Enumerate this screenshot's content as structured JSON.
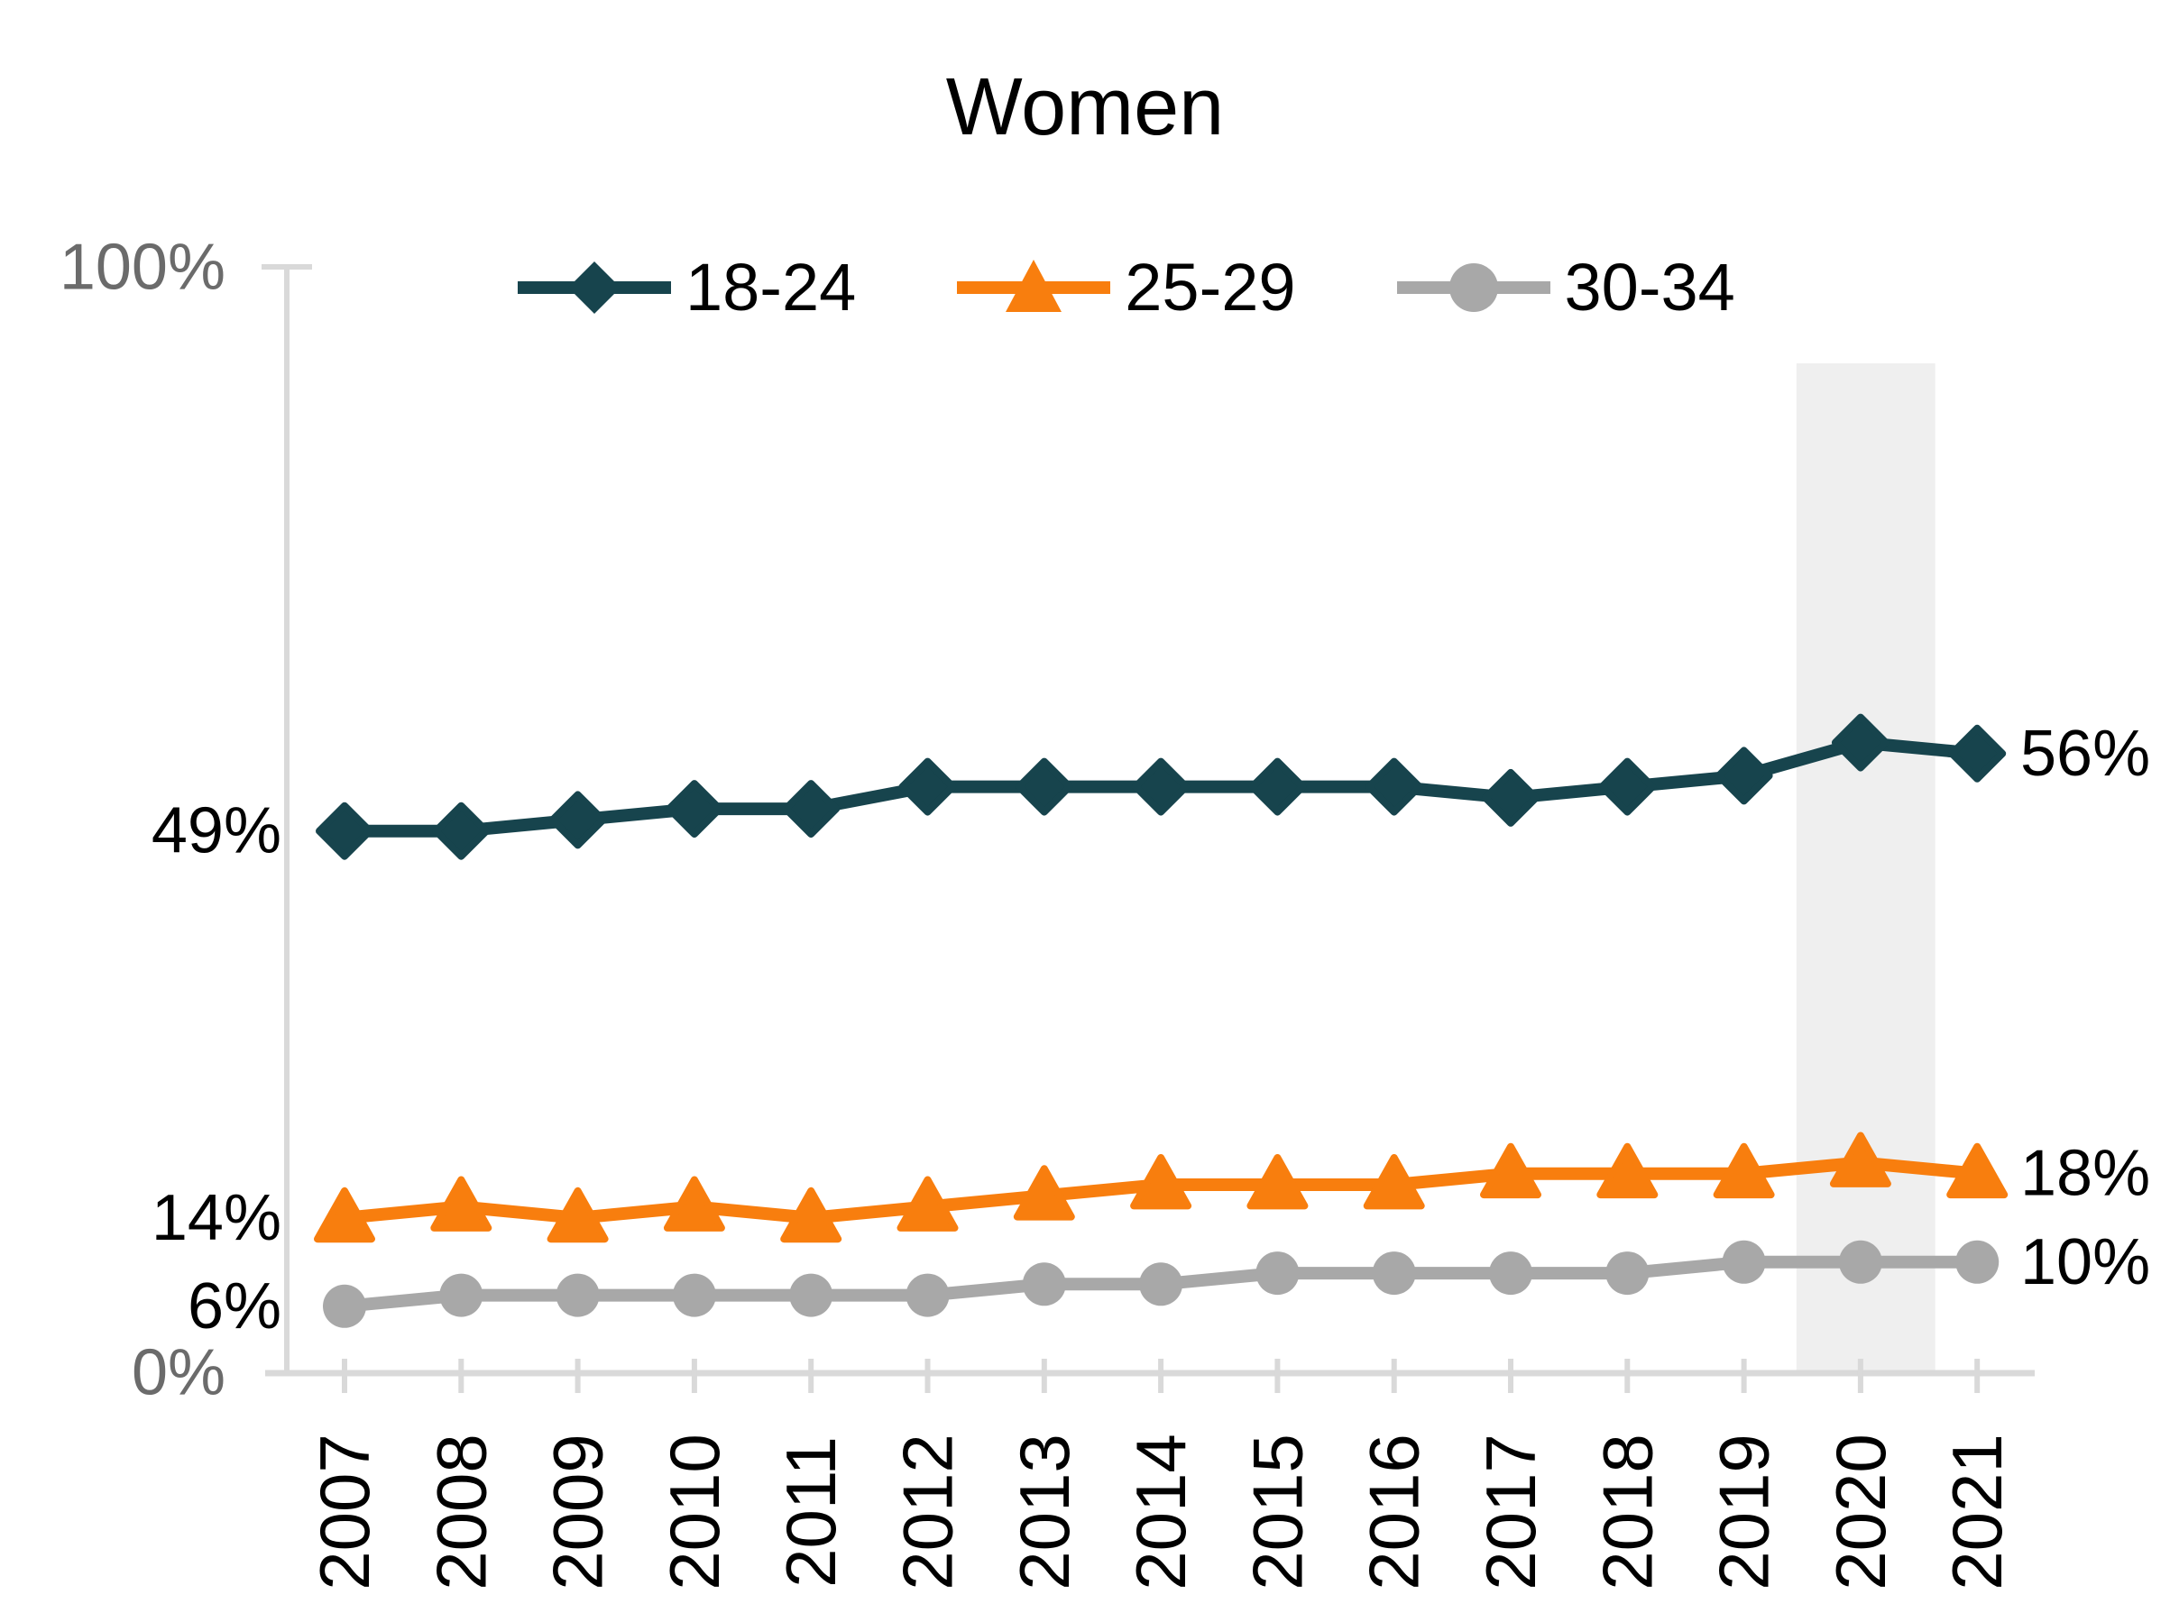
{
  "page": {
    "background": "#ffffff"
  },
  "chart_data": {
    "type": "line",
    "title": "Women",
    "categories": [
      "2007",
      "2008",
      "2009",
      "2010",
      "2011",
      "2012",
      "2013",
      "2014",
      "2015",
      "2016",
      "2017",
      "2018",
      "2019",
      "2020",
      "2021"
    ],
    "series": [
      {
        "name": "18-24",
        "color": "#17444d",
        "marker": "diamond",
        "values": [
          49,
          49,
          50,
          51,
          51,
          53,
          53,
          53,
          53,
          53,
          52,
          53,
          54,
          57,
          56
        ],
        "first_label": "49%",
        "last_label": "56%"
      },
      {
        "name": "25-29",
        "color": "#f87e0e",
        "marker": "triangle",
        "values": [
          14,
          15,
          14,
          15,
          14,
          15,
          16,
          17,
          17,
          17,
          18,
          18,
          18,
          19,
          18
        ],
        "first_label": "14%",
        "last_label": "18%"
      },
      {
        "name": "30-34",
        "color": "#a8a8a8",
        "marker": "circle",
        "values": [
          6,
          7,
          7,
          7,
          7,
          7,
          8,
          8,
          9,
          9,
          9,
          9,
          10,
          10,
          10
        ],
        "first_label": "6%",
        "last_label": "10%"
      }
    ],
    "y_axis": {
      "min": 0,
      "max": 100,
      "ticks": [
        {
          "label": "100%",
          "value": 100
        },
        {
          "label": "0%",
          "value": 0
        }
      ],
      "text_color": "#6b6b6b",
      "line_color": "#d9d9d9"
    },
    "x_axis": {
      "label_rotation": -90,
      "text_color": "#000000"
    },
    "legend": {
      "position": "top"
    },
    "grid": false,
    "point_label_color": "#000000",
    "annotations": {
      "highlight_band": {
        "from_index": 12.45,
        "to_index": 13.64,
        "color": "#efefef"
      }
    }
  }
}
